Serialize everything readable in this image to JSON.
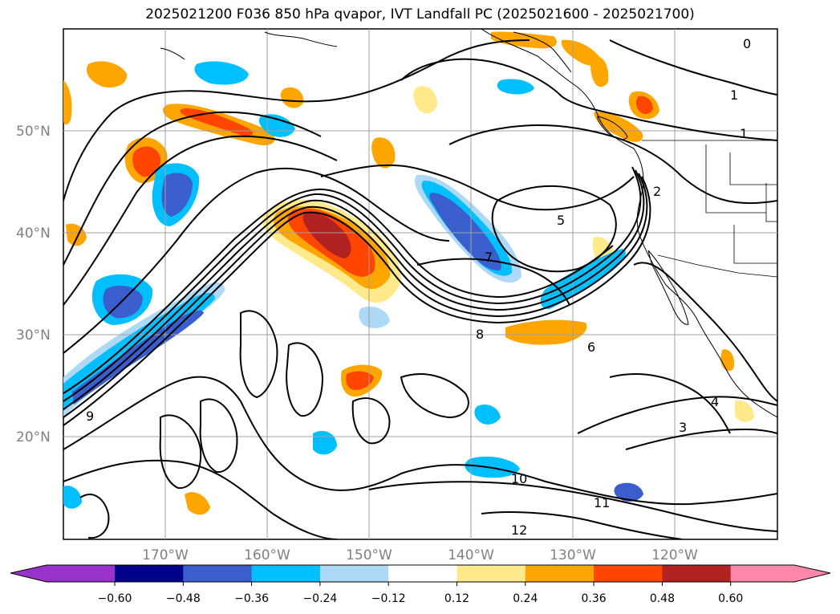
{
  "title": "2025021200 F036 850 hPa qvapor, IVT Landfall PC (2025021600 - 2025021700)",
  "lat_ticks": [
    "50°N",
    "40°N",
    "30°N",
    "20°N"
  ],
  "lon_ticks": [
    "170°W",
    "160°W",
    "150°W",
    "140°W",
    "130°W",
    "120°W"
  ],
  "colorbar": {
    "labels": [
      "−0.60",
      "−0.48",
      "−0.36",
      "−0.24",
      "−0.12",
      "0.12",
      "0.24",
      "0.36",
      "0.48",
      "0.60"
    ],
    "colors": [
      "#9932cc",
      "#00008b",
      "#3a5fcd",
      "#00bfff",
      "#add8f6",
      "#ffffff",
      "#ffe98a",
      "#ffa500",
      "#ff4500",
      "#b22222",
      "#ff88aa"
    ]
  },
  "contour_labels": [
    "0",
    "1",
    "1",
    "2",
    "3",
    "4",
    "5",
    "6",
    "7",
    "8",
    "9",
    "10",
    "11",
    "12"
  ],
  "colors": {
    "land_outline": "#000000",
    "grid": "#a0a0a0",
    "contour": "#000000"
  }
}
